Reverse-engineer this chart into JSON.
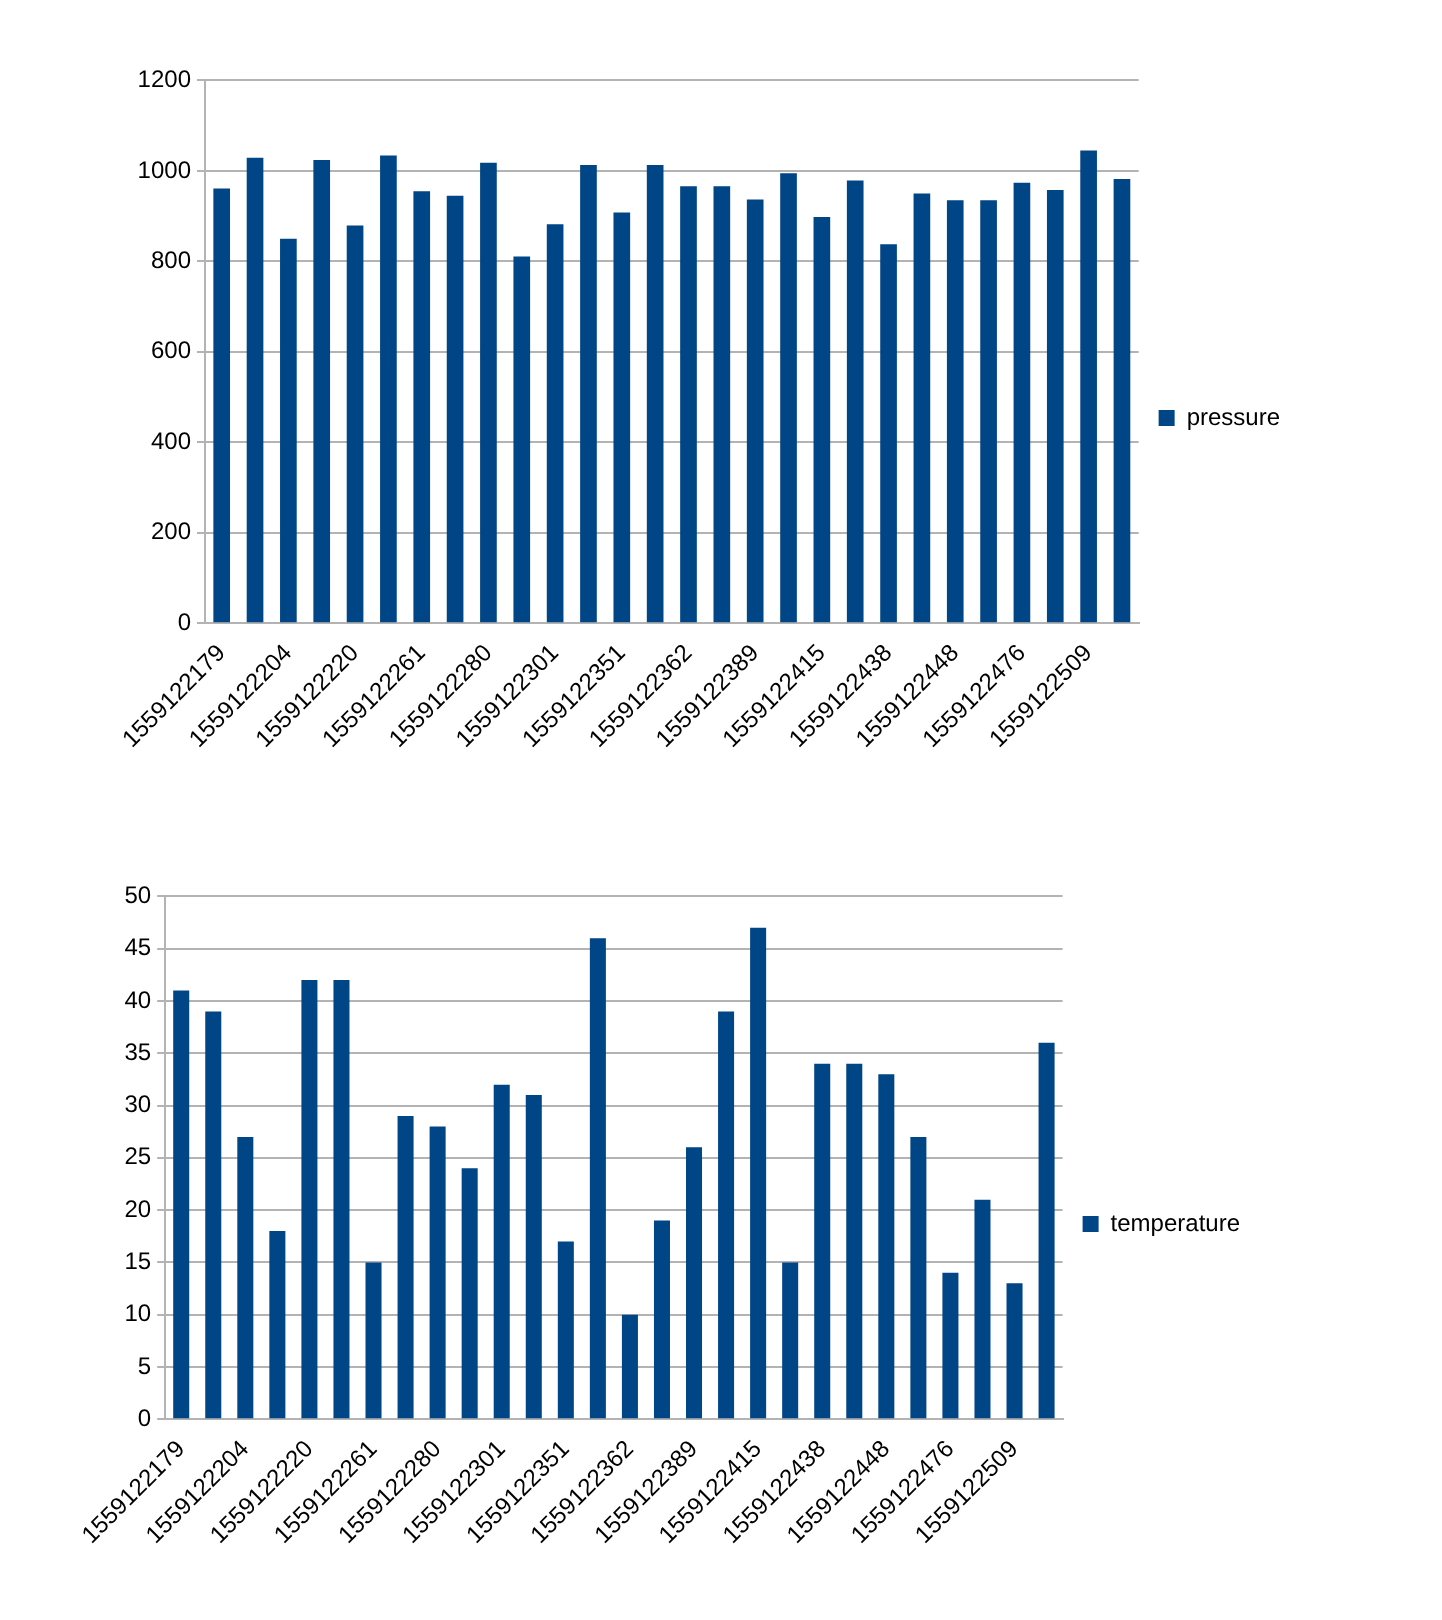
{
  "chart_data": [
    {
      "type": "bar",
      "categories": [
        "1559122179",
        null,
        "1559122204",
        null,
        "1559122220",
        null,
        "1559122261",
        null,
        "1559122280",
        null,
        "1559122301",
        null,
        "1559122351",
        null,
        "1559122362",
        null,
        "1559122389",
        null,
        "1559122415",
        null,
        "1559122438",
        null,
        "1559122448",
        null,
        "1559122476",
        null,
        "1559122509",
        null
      ],
      "series": [
        {
          "name": "pressure",
          "color": "#004586",
          "values": [
            961,
            1029,
            850,
            1024,
            879,
            1034,
            955,
            945,
            1018,
            811,
            882,
            1013,
            908,
            1013,
            966,
            966,
            937,
            995,
            898,
            979,
            838,
            950,
            935,
            935,
            974,
            958,
            1045,
            982
          ]
        }
      ],
      "ylim": [
        0,
        1200
      ],
      "yticks": [
        0,
        200,
        400,
        600,
        800,
        1000,
        1200
      ],
      "grid": "y",
      "legend": "right"
    },
    {
      "type": "bar",
      "categories": [
        "1559122179",
        null,
        "1559122204",
        null,
        "1559122220",
        null,
        "1559122261",
        null,
        "1559122280",
        null,
        "1559122301",
        null,
        "1559122351",
        null,
        "1559122362",
        null,
        "1559122389",
        null,
        "1559122415",
        null,
        "1559122438",
        null,
        "1559122448",
        null,
        "1559122476",
        null,
        "1559122509",
        null
      ],
      "series": [
        {
          "name": "temperature",
          "color": "#004586",
          "values": [
            41,
            39,
            27,
            18,
            42,
            42,
            15,
            29,
            28,
            24,
            32,
            31,
            17,
            46,
            10,
            19,
            26,
            39,
            47,
            15,
            34,
            34,
            33,
            27,
            14,
            21,
            13,
            36
          ]
        }
      ],
      "ylim": [
        0,
        50
      ],
      "yticks": [
        0,
        5,
        10,
        15,
        20,
        25,
        30,
        35,
        40,
        45,
        50
      ],
      "grid": "y",
      "legend": "right"
    }
  ]
}
